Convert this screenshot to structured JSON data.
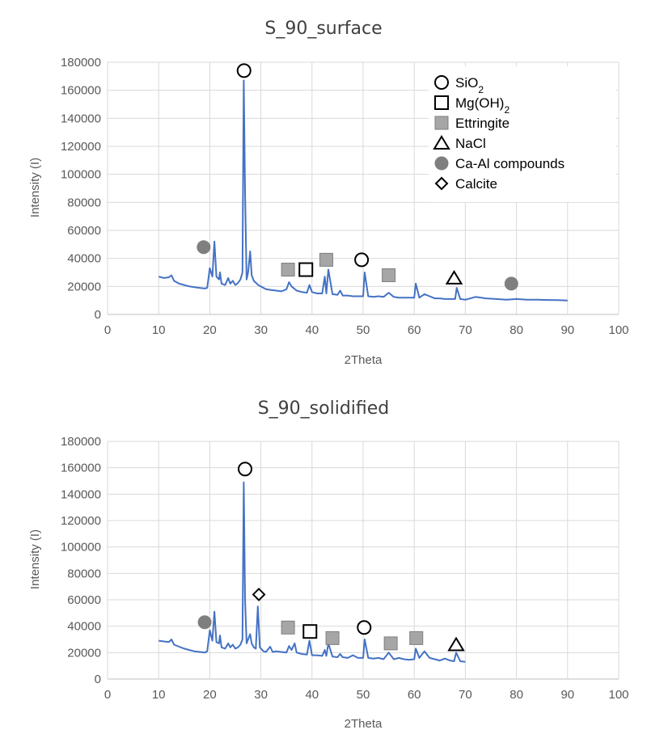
{
  "chart_data": [
    {
      "type": "line",
      "title": "S_90_surface",
      "xlabel": "2Theta",
      "ylabel": "Intensity (I)",
      "xlim": [
        0,
        100
      ],
      "ylim": [
        0,
        180000
      ],
      "xticks": [
        "0",
        "10",
        "20",
        "30",
        "40",
        "50",
        "60",
        "70",
        "80",
        "90",
        "100"
      ],
      "yticks": [
        "0",
        "20000",
        "40000",
        "60000",
        "80000",
        "100000",
        "120000",
        "140000",
        "160000",
        "180000"
      ],
      "grid": true,
      "line_color": "#4472c4",
      "series": [
        {
          "x": [
            10,
            11,
            12,
            12.5,
            13,
            14,
            15,
            16,
            17,
            18,
            19,
            19.5,
            20,
            20.5,
            20.9,
            21.3,
            21.8,
            22,
            22.3,
            23,
            23.6,
            24,
            24.5,
            25,
            25.5,
            26,
            26.4,
            26.65,
            26.9,
            27.2,
            27.5,
            27.9,
            28.2,
            28.6,
            29.5,
            30.5,
            31,
            32,
            33,
            34,
            35,
            35.5,
            36,
            37,
            38,
            39,
            39.5,
            40,
            41,
            42,
            42.5,
            42.8,
            43.2,
            44,
            45,
            45.5,
            46,
            47,
            48,
            49,
            50,
            50.3,
            51,
            52,
            53,
            54,
            55,
            56,
            57,
            58,
            59,
            60,
            60.3,
            61,
            62,
            63,
            64,
            65,
            66,
            67,
            68,
            68.3,
            69,
            70,
            72,
            74,
            76,
            78,
            80,
            82,
            84,
            86,
            88,
            90
          ],
          "y": [
            27000,
            26000,
            26500,
            28000,
            24000,
            22000,
            21000,
            20000,
            19500,
            19000,
            18500,
            19000,
            33000,
            27000,
            52000,
            27000,
            25000,
            30000,
            22000,
            21000,
            26000,
            22000,
            24000,
            21000,
            22500,
            25000,
            30000,
            167000,
            88000,
            25000,
            30000,
            45000,
            28000,
            24000,
            21000,
            19000,
            18000,
            17500,
            17000,
            16500,
            18000,
            23000,
            20000,
            17000,
            16000,
            15500,
            21000,
            16000,
            15000,
            15000,
            27000,
            15000,
            32000,
            14500,
            14000,
            17000,
            13500,
            13500,
            13000,
            13000,
            13000,
            30000,
            13000,
            12500,
            13000,
            12500,
            15500,
            12500,
            12000,
            12000,
            12000,
            12000,
            22000,
            12000,
            14500,
            13000,
            11500,
            11500,
            11000,
            11000,
            11000,
            19000,
            11000,
            10500,
            12500,
            11500,
            11000,
            10500,
            11000,
            10500,
            10500,
            10300,
            10200,
            10000
          ]
        }
      ],
      "markers": [
        {
          "symbol": "circle-open",
          "x": 26.7,
          "y": 174000
        },
        {
          "symbol": "circle-filled",
          "x": 18.8,
          "y": 48000
        },
        {
          "symbol": "square-gray",
          "x": 35.3,
          "y": 32000
        },
        {
          "symbol": "square-open",
          "x": 38.8,
          "y": 32000
        },
        {
          "symbol": "square-gray",
          "x": 42.8,
          "y": 39000
        },
        {
          "symbol": "circle-open",
          "x": 49.7,
          "y": 39000
        },
        {
          "symbol": "square-gray",
          "x": 55,
          "y": 28000
        },
        {
          "symbol": "triangle-open",
          "x": 67.8,
          "y": 26000
        },
        {
          "symbol": "circle-filled",
          "x": 79,
          "y": 22000
        }
      ],
      "legend": {
        "placement": "top-right",
        "entries": [
          {
            "symbol": "circle-open",
            "label": "SiO",
            "sub": "2"
          },
          {
            "symbol": "square-open",
            "label": "Mg(OH)",
            "sub": "2"
          },
          {
            "symbol": "square-gray",
            "label": "Ettringite",
            "sub": ""
          },
          {
            "symbol": "triangle-open",
            "label": "NaCl",
            "sub": ""
          },
          {
            "symbol": "circle-filled",
            "label": "Ca-Al compounds",
            "sub": ""
          },
          {
            "symbol": "diamond-open",
            "label": "Calcite",
            "sub": ""
          }
        ]
      }
    },
    {
      "type": "line",
      "title": "S_90_solidified",
      "xlabel": "2Theta",
      "ylabel": "Intensity (I)",
      "xlim": [
        0,
        100
      ],
      "ylim": [
        0,
        180000
      ],
      "xticks": [
        "0",
        "10",
        "20",
        "30",
        "40",
        "50",
        "60",
        "70",
        "80",
        "90",
        "100"
      ],
      "yticks": [
        "0",
        "20000",
        "40000",
        "60000",
        "80000",
        "100000",
        "120000",
        "140000",
        "160000",
        "180000"
      ],
      "grid": true,
      "line_color": "#4472c4",
      "series": [
        {
          "x": [
            10,
            11,
            12,
            12.5,
            13,
            14,
            15,
            16,
            17,
            18,
            19,
            19.5,
            20,
            20.5,
            20.9,
            21.3,
            21.8,
            22,
            22.3,
            23,
            23.6,
            24,
            24.5,
            25,
            25.5,
            26,
            26.4,
            26.65,
            26.9,
            27.2,
            27.5,
            27.9,
            28.2,
            28.6,
            29,
            29.4,
            29.8,
            30.5,
            31,
            31.8,
            32.3,
            33,
            34,
            35,
            35.5,
            36,
            36.6,
            37,
            38,
            39,
            39.5,
            40,
            41,
            42,
            42.5,
            42.8,
            43.2,
            44,
            45,
            45.5,
            46,
            47,
            48,
            49,
            50,
            50.3,
            51,
            52,
            53,
            54,
            55,
            56,
            57,
            58,
            59,
            60,
            60.3,
            61,
            62,
            63,
            64,
            65,
            66,
            67,
            67.8,
            68.2,
            69,
            70
          ],
          "y": [
            29000,
            28500,
            28000,
            30000,
            26000,
            24500,
            23000,
            22000,
            21000,
            20500,
            20000,
            21000,
            37000,
            29000,
            51000,
            28000,
            27000,
            33000,
            24000,
            23000,
            27000,
            24000,
            26000,
            23000,
            24000,
            26000,
            30000,
            149000,
            60000,
            27000,
            30000,
            34000,
            27000,
            24000,
            23000,
            55000,
            24000,
            21000,
            20500,
            24500,
            20500,
            21000,
            20500,
            20000,
            25000,
            22000,
            27000,
            20000,
            19000,
            18500,
            29000,
            18000,
            18000,
            17500,
            22000,
            17500,
            27000,
            17000,
            16500,
            19000,
            16500,
            16000,
            18000,
            16000,
            16000,
            30000,
            16000,
            15500,
            16000,
            15000,
            20000,
            15000,
            16000,
            15000,
            14500,
            15000,
            23000,
            16000,
            21000,
            16000,
            15000,
            14000,
            15500,
            14000,
            13500,
            20000,
            13500,
            13000
          ]
        }
      ],
      "markers": [
        {
          "symbol": "circle-open",
          "x": 26.9,
          "y": 159000
        },
        {
          "symbol": "circle-filled",
          "x": 19,
          "y": 43000
        },
        {
          "symbol": "diamond-open",
          "x": 29.6,
          "y": 64000
        },
        {
          "symbol": "square-gray",
          "x": 35.3,
          "y": 39000
        },
        {
          "symbol": "square-open",
          "x": 39.6,
          "y": 36000
        },
        {
          "symbol": "square-gray",
          "x": 44,
          "y": 31000
        },
        {
          "symbol": "circle-open",
          "x": 50.2,
          "y": 39000
        },
        {
          "symbol": "square-gray",
          "x": 55.4,
          "y": 27000
        },
        {
          "symbol": "square-gray",
          "x": 60.4,
          "y": 31000
        },
        {
          "symbol": "triangle-open",
          "x": 68.2,
          "y": 26000
        }
      ]
    }
  ]
}
